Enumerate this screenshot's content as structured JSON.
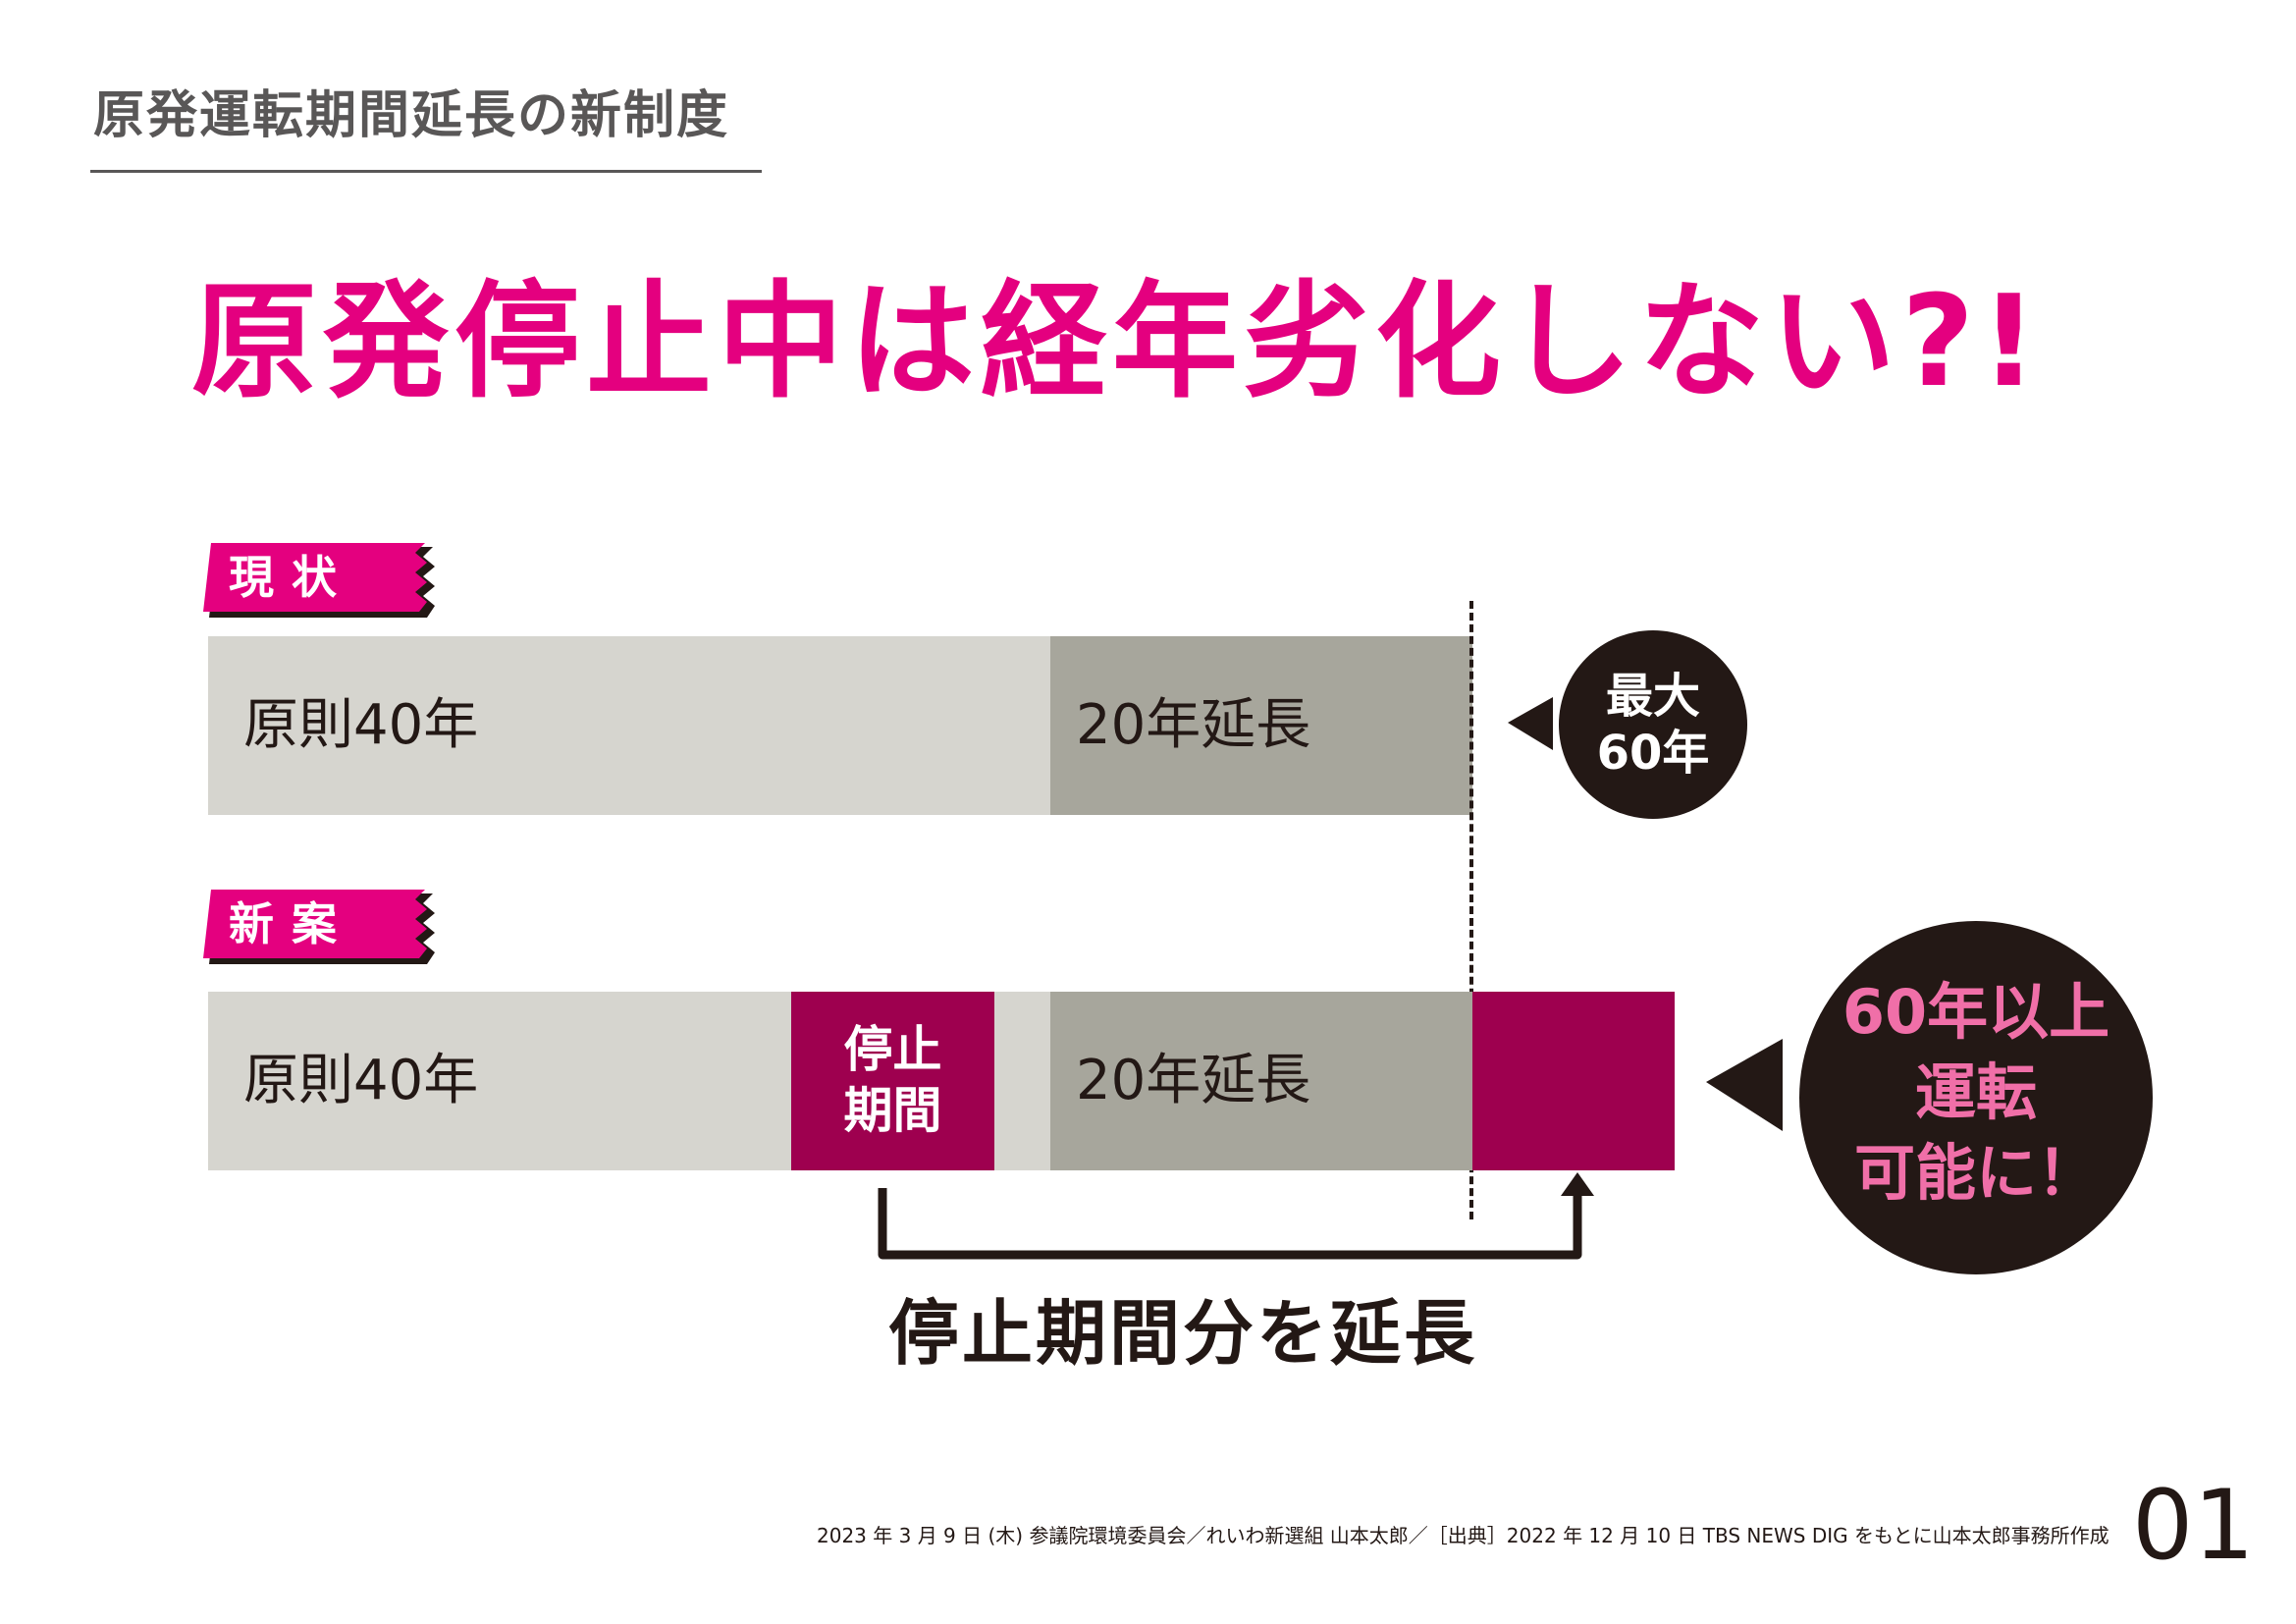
{
  "heading": "原発運転期間延長の新制度",
  "title": "原発停止中は経年劣化しない?!",
  "current": {
    "tag": "現状",
    "base_label": "原則40年",
    "extension_label": "20年延長",
    "callout": "最大\n60年"
  },
  "proposal": {
    "tag": "新案",
    "base_label": "原則40年",
    "stop_label": "停止\n期間",
    "extension_label": "20年延長",
    "callout": "60年以上\n運転\n可能に！"
  },
  "bottom_caption": "停止期間分を延長",
  "footer": "2023 年 3 月 9 日 (木) 参議院環境委員会／れいわ新選組 山本太郎／［出典］2022 年 12 月 10 日 TBS NEWS  DIG をもとに山本太郎事務所作成",
  "page_number": "01",
  "colors": {
    "accent_pink": "#e4007f",
    "dark_magenta": "#9e004f",
    "light_gray": "#d6d5cf",
    "mid_gray": "#a7a69c",
    "callout_black": "#231815",
    "callout_pink_text": "#f06fa8"
  }
}
